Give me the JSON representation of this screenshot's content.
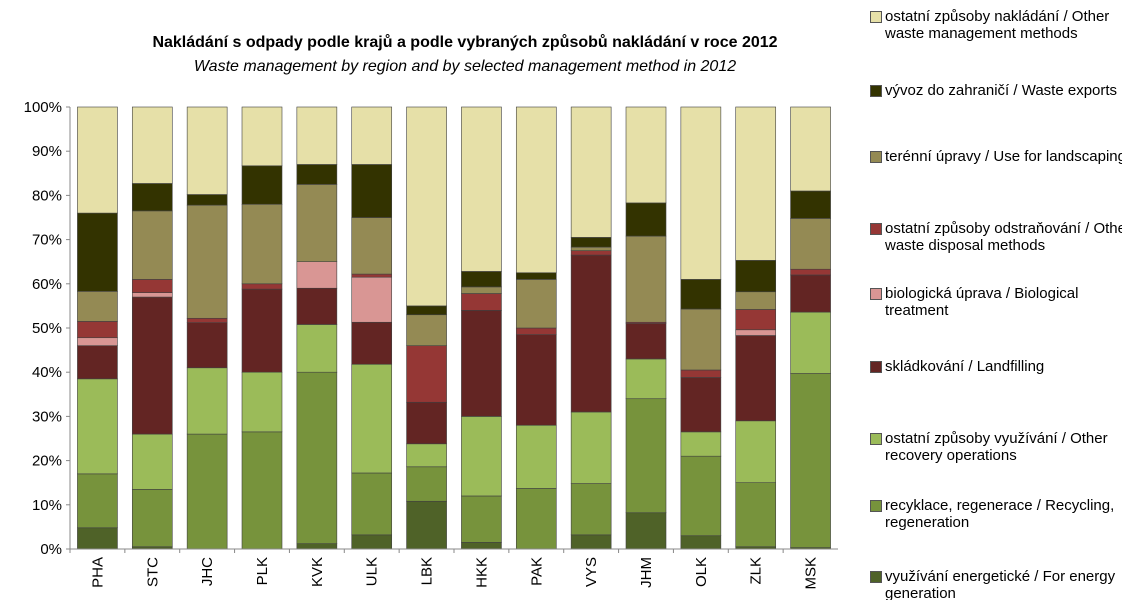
{
  "chart_data": {
    "type": "bar",
    "stacked": true,
    "title": "Nakládání s odpady podle krajů a podle vybraných způsobů nakládání v roce 2012",
    "subtitle": "Waste management by region and by selected management method in 2012",
    "categories": [
      "PHA",
      "STC",
      "JHC",
      "PLK",
      "KVK",
      "ULK",
      "LBK",
      "HKK",
      "PAK",
      "VYS",
      "JHM",
      "OLK",
      "ZLK",
      "MSK"
    ],
    "series": [
      {
        "name": "využívání energetické / For energy generation",
        "color": "#4f6228",
        "values": [
          4.8,
          0.5,
          0,
          0,
          1.2,
          3.2,
          10.8,
          1.5,
          0,
          3.2,
          8.2,
          3,
          0.5,
          0.3
        ]
      },
      {
        "name": "recyklace, regenerace / Recycling, regeneration",
        "color": "#77933c",
        "values": [
          12.2,
          13,
          26,
          26.5,
          38.8,
          14,
          7.8,
          10.5,
          13.7,
          11.6,
          25.8,
          18,
          14.5,
          39.4
        ]
      },
      {
        "name": "ostatní způsoby využívání / Other recovery operations",
        "color": "#9bbb59",
        "values": [
          21.5,
          12.5,
          15,
          13.5,
          10.8,
          24.6,
          5.2,
          18,
          14.3,
          16.2,
          9,
          5.5,
          14,
          13.9
        ]
      },
      {
        "name": "skládkování / Landfilling",
        "color": "#632523",
        "values": [
          7.5,
          31,
          10.2,
          18.8,
          8.2,
          9.5,
          9.4,
          24,
          20.5,
          35.5,
          8,
          12.3,
          19.3,
          8.4
        ]
      },
      {
        "name": "biologická úprava / Biological treatment",
        "color": "#d99694",
        "values": [
          1.8,
          1,
          0,
          0,
          6,
          10.2,
          0,
          0,
          0,
          0,
          0,
          0,
          1.3,
          0
        ]
      },
      {
        "name": "ostatní způsoby odstraňování / Other waste disposal methods",
        "color": "#953735",
        "values": [
          3.7,
          3,
          1,
          1.2,
          0,
          0.7,
          12.8,
          3.8,
          1.5,
          1,
          0.3,
          1.7,
          4.6,
          1.3
        ]
      },
      {
        "name": "terénní úpravy / Use for landscaping",
        "color": "#948a54",
        "values": [
          6.8,
          15.5,
          25.6,
          18,
          17.5,
          12.8,
          7,
          1.5,
          11,
          0.8,
          19.5,
          13.8,
          4,
          11.5
        ]
      },
      {
        "name": "vývoz do zahraničí / Waste exports",
        "color": "#333300",
        "values": [
          17.7,
          6.2,
          2.4,
          8.7,
          4.5,
          12,
          2,
          3.5,
          1.5,
          2.2,
          7.5,
          6.7,
          7.1,
          6.2
        ]
      },
      {
        "name": "ostatní způsoby nakládání / Other waste management methods",
        "color": "#e6e0a8",
        "values": [
          24,
          17.3,
          19.8,
          13.3,
          13,
          13,
          45,
          37.2,
          37.5,
          29.5,
          21.7,
          39,
          34.7,
          19
        ]
      }
    ],
    "ylim": [
      0,
      100
    ],
    "yticks": [
      {
        "value": 0,
        "label": "0%"
      },
      {
        "value": 10,
        "label": "10%"
      },
      {
        "value": 20,
        "label": "20%"
      },
      {
        "value": 30,
        "label": "30%"
      },
      {
        "value": 40,
        "label": "40%"
      },
      {
        "value": 50,
        "label": "50%"
      },
      {
        "value": 60,
        "label": "60%"
      },
      {
        "value": 70,
        "label": "70%"
      },
      {
        "value": 80,
        "label": "80%"
      },
      {
        "value": 90,
        "label": "90%"
      },
      {
        "value": 100,
        "label": "100%"
      }
    ],
    "grid": false
  }
}
